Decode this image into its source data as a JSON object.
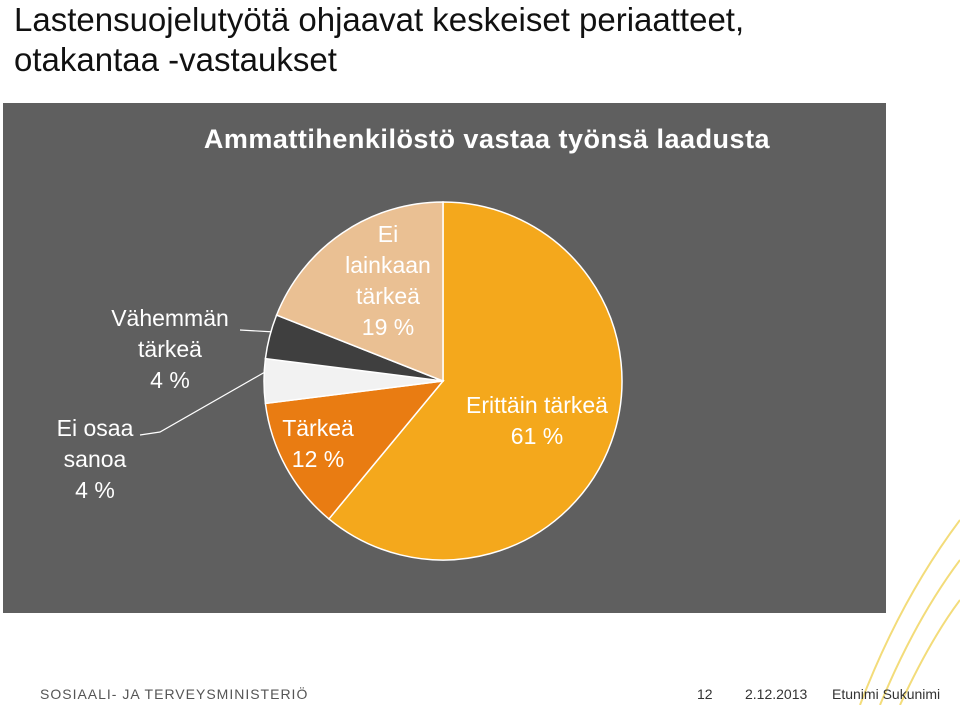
{
  "header": {
    "title": "Lastensuojelutyötä ohjaavat keskeiset periaatteet, otakantaa -vastaukset"
  },
  "chart_data": {
    "type": "pie",
    "title": "Ammattihenkilöstö vastaa työnsä laadusta",
    "categories": [
      "Erittäin tärkeä",
      "Tärkeä",
      "Ei osaa sanoa",
      "Vähemmän tärkeä",
      "Ei lainkaan tärkeä"
    ],
    "values": [
      61,
      12,
      4,
      4,
      19
    ],
    "value_labels": [
      "61 %",
      "12 %",
      "4 %",
      "4 %",
      "19 %"
    ],
    "colors": [
      "#f4a81c",
      "#e97c12",
      "#f2f2f2",
      "#3f3f3f",
      "#eac093"
    ]
  },
  "footer": {
    "organization": "SOSIAALI- JA TERVEYSMINISTERIÖ",
    "page": "12",
    "date": "2.12.2013",
    "author": "Etunimi Sukunimi"
  }
}
